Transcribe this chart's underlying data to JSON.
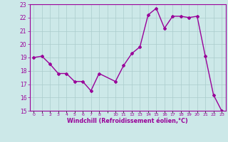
{
  "x": [
    0,
    1,
    2,
    3,
    4,
    5,
    6,
    7,
    8,
    10,
    11,
    12,
    13,
    14,
    15,
    16,
    17,
    18,
    19,
    20,
    21,
    22,
    23
  ],
  "y": [
    19.0,
    19.1,
    18.5,
    17.8,
    17.8,
    17.2,
    17.2,
    16.5,
    17.8,
    17.2,
    18.4,
    19.3,
    19.8,
    22.2,
    22.7,
    21.2,
    22.1,
    22.1,
    22.0,
    22.1,
    19.1,
    16.2,
    15.0
  ],
  "line_color": "#990099",
  "marker": "D",
  "marker_size": 2.0,
  "bg_color": "#cce8e8",
  "grid_color": "#aacccc",
  "xlabel": "Windchill (Refroidissement éolien,°C)",
  "xlabel_color": "#990099",
  "ylim": [
    15,
    23
  ],
  "yticks": [
    15,
    16,
    17,
    18,
    19,
    20,
    21,
    22,
    23
  ],
  "xtick_labels": [
    "0",
    "1",
    "2",
    "3",
    "4",
    "5",
    "6",
    "7",
    "8",
    "",
    "10",
    "11",
    "12",
    "13",
    "14",
    "15",
    "16",
    "17",
    "18",
    "19",
    "20",
    "21",
    "22",
    "23"
  ],
  "xtick_positions": [
    0,
    1,
    2,
    3,
    4,
    5,
    6,
    7,
    8,
    9,
    10,
    11,
    12,
    13,
    14,
    15,
    16,
    17,
    18,
    19,
    20,
    21,
    22,
    23
  ],
  "tick_color": "#990099",
  "line_width": 1.0
}
